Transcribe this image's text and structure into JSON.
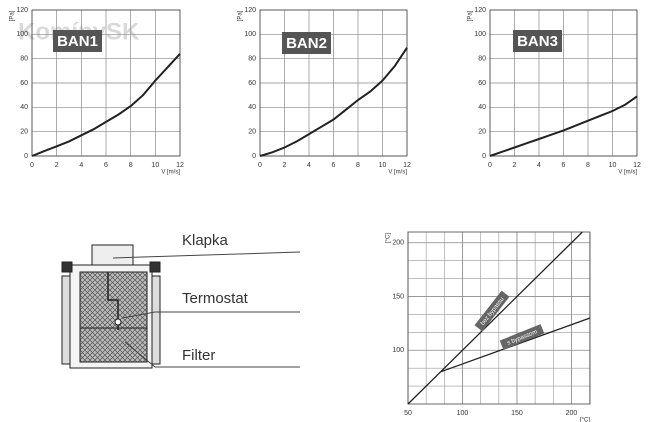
{
  "watermark": "KomínySK",
  "chart_data": [
    {
      "type": "line",
      "title": "BAN1",
      "y_label": "[Pa]",
      "x_label": "V [m/s]",
      "x": [
        0,
        1,
        2,
        3,
        4,
        5,
        6,
        7,
        8,
        9,
        10,
        11,
        12
      ],
      "values": [
        0,
        4,
        8,
        12,
        17,
        22,
        28,
        34,
        41,
        50,
        62,
        73,
        84
      ],
      "color": "#222222",
      "xlim": [
        0,
        12
      ],
      "xticks": [
        0,
        2,
        4,
        6,
        8,
        10,
        12
      ],
      "ylim": [
        0,
        120
      ],
      "yticks": [
        0,
        20,
        40,
        60,
        80,
        100,
        120
      ],
      "grid": true
    },
    {
      "type": "line",
      "title": "BAN2",
      "y_label": "[Pa]",
      "x_label": "V [m/s]",
      "x": [
        0,
        1,
        2,
        3,
        4,
        5,
        6,
        7,
        8,
        9,
        10,
        11,
        12
      ],
      "values": [
        0,
        3,
        7,
        12,
        18,
        24,
        30,
        38,
        46,
        53,
        62,
        74,
        89
      ],
      "color": "#222222",
      "xlim": [
        0,
        12
      ],
      "xticks": [
        0,
        2,
        4,
        6,
        8,
        10,
        12
      ],
      "ylim": [
        0,
        120
      ],
      "yticks": [
        0,
        20,
        40,
        60,
        80,
        100,
        120
      ],
      "grid": true
    },
    {
      "type": "line",
      "title": "BAN3",
      "y_label": "[Pa]",
      "x_label": "V [m/s]",
      "x": [
        0,
        1,
        2,
        3,
        4,
        5,
        6,
        7,
        8,
        9,
        10,
        11,
        12
      ],
      "values": [
        0,
        3.5,
        7,
        10.5,
        14,
        17.5,
        21,
        25,
        29,
        33,
        37,
        42,
        49
      ],
      "color": "#222222",
      "xlim": [
        0,
        12
      ],
      "xticks": [
        0,
        2,
        4,
        6,
        8,
        10,
        12
      ],
      "ylim": [
        0,
        120
      ],
      "yticks": [
        0,
        20,
        40,
        60,
        80,
        100,
        120
      ],
      "grid": true
    },
    {
      "type": "line",
      "y_label": "[°C]",
      "x_label": "[°C]",
      "series": [
        {
          "name": "bez bypassu",
          "color": "#222222",
          "x": [
            50,
            210
          ],
          "values": [
            50,
            210
          ]
        },
        {
          "name": "s bypassom",
          "color": "#222222",
          "x": [
            80,
            217
          ],
          "values": [
            80,
            130
          ]
        }
      ],
      "xlim": [
        50,
        217
      ],
      "xticks": [
        50,
        100,
        150,
        200
      ],
      "ylim": [
        50,
        210
      ],
      "yticks": [
        100,
        150,
        200
      ],
      "grid": true,
      "minor_divisions": 3
    }
  ],
  "diagram": {
    "labels": [
      "Klapka",
      "Termostat",
      "Filter"
    ]
  }
}
